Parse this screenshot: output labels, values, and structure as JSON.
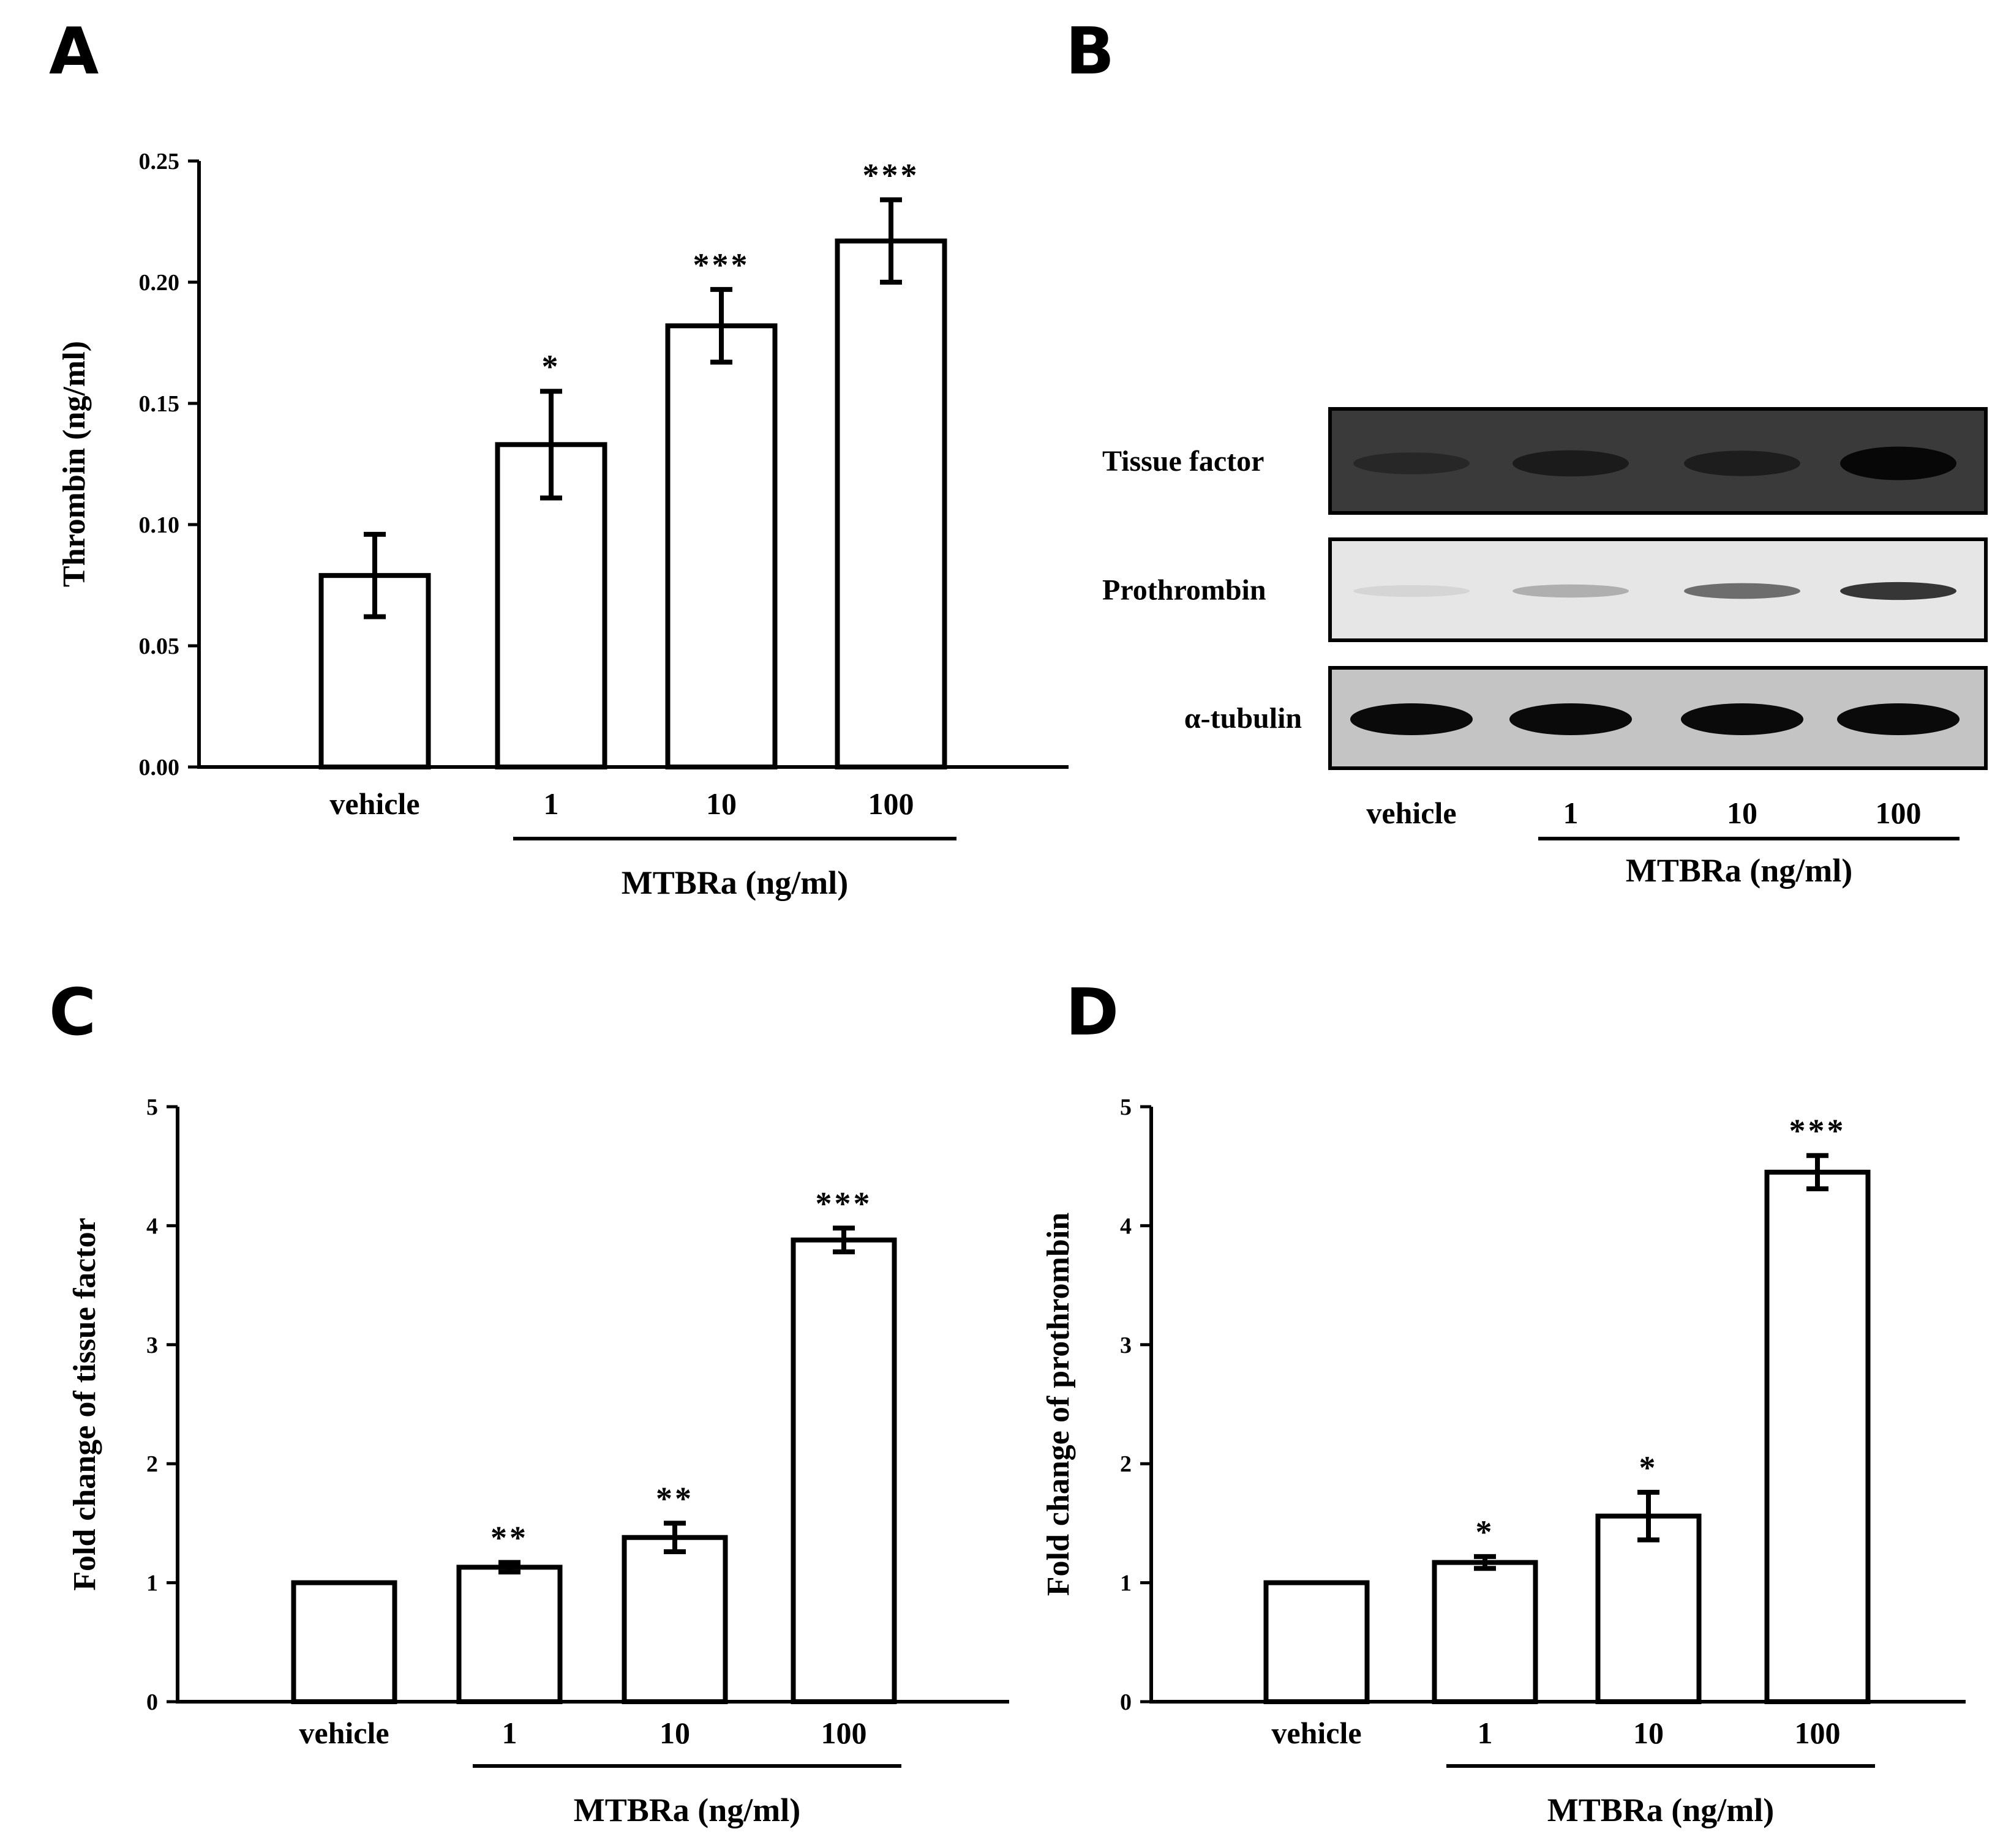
{
  "panel_letters": {
    "a": "A",
    "b": "B",
    "c": "C",
    "d": "D"
  },
  "chart_data": [
    {
      "panel": "A",
      "type": "bar",
      "ylabel": "Thrombin (ng/ml)",
      "xlabel": "MTBRa (ng/ml)",
      "categories": [
        "vehicle",
        "1",
        "10",
        "100"
      ],
      "values": [
        0.079,
        0.133,
        0.182,
        0.217
      ],
      "errors": [
        0.017,
        0.022,
        0.015,
        0.017
      ],
      "significance": [
        "",
        "*",
        "***",
        "***"
      ],
      "ylim": [
        0,
        0.25
      ],
      "yticks": [
        "0.00",
        "0.05",
        "0.10",
        "0.15",
        "0.20",
        "0.25"
      ],
      "bracket_groups": [
        "1",
        "10",
        "100"
      ],
      "grid": false,
      "legend": "none"
    },
    {
      "panel": "C",
      "type": "bar",
      "ylabel": "Fold change of tissue factor",
      "xlabel": "MTBRa (ng/ml)",
      "categories": [
        "vehicle",
        "1",
        "10",
        "100"
      ],
      "values": [
        1.0,
        1.13,
        1.38,
        3.88
      ],
      "errors": [
        0,
        0.04,
        0.12,
        0.1
      ],
      "significance": [
        "",
        "**",
        "**",
        "***"
      ],
      "ylim": [
        0,
        5
      ],
      "yticks": [
        "0",
        "1",
        "2",
        "3",
        "4",
        "5"
      ],
      "bracket_groups": [
        "1",
        "10",
        "100"
      ],
      "grid": false,
      "legend": "none"
    },
    {
      "panel": "D",
      "type": "bar",
      "ylabel": "Fold change of prothrombin",
      "xlabel": "MTBRa (ng/ml)",
      "categories": [
        "vehicle",
        "1",
        "10",
        "100"
      ],
      "values": [
        1.0,
        1.17,
        1.56,
        4.45
      ],
      "errors": [
        0,
        0.05,
        0.2,
        0.14
      ],
      "significance": [
        "",
        "*",
        "*",
        "***"
      ],
      "ylim": [
        0,
        5
      ],
      "yticks": [
        "0",
        "1",
        "2",
        "3",
        "4",
        "5"
      ],
      "bracket_groups": [
        "1",
        "10",
        "100"
      ],
      "grid": false,
      "legend": "none"
    }
  ],
  "blot": {
    "panel": "B",
    "rows": [
      {
        "label": "Tissue factor",
        "intensities": [
          0.15,
          0.45,
          0.4,
          0.95
        ],
        "background": "#3a3a3a"
      },
      {
        "label": "Prothrombin",
        "intensities": [
          0.08,
          0.25,
          0.55,
          0.8
        ],
        "background": "#e6e6e6"
      },
      {
        "label": "α-tubulin",
        "intensities": [
          1.0,
          1.0,
          1.0,
          1.0
        ],
        "background": "#c4c4c4"
      }
    ],
    "lanes": [
      "vehicle",
      "1",
      "10",
      "100"
    ],
    "xlabel": "MTBRa (ng/ml)",
    "bracket_groups": [
      "1",
      "10",
      "100"
    ]
  }
}
